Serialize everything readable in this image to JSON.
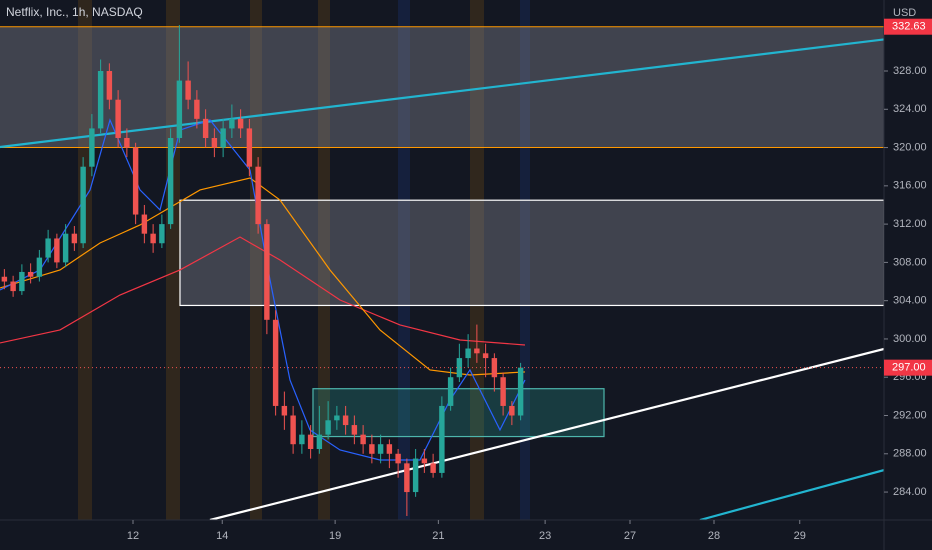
{
  "chart_data": {
    "type": "candlestick",
    "title": "Netflix, Inc., 1h, NASDAQ",
    "currency": "USD",
    "xlim": [
      -0.5,
      100.53
    ],
    "ylim": [
      281.08,
      335.42
    ],
    "xticks": [
      {
        "value": 14.7,
        "label": "12"
      },
      {
        "value": 24.9,
        "label": "14"
      },
      {
        "value": 37.8,
        "label": "19"
      },
      {
        "value": 49.6,
        "label": "21"
      },
      {
        "value": 61.8,
        "label": "23"
      },
      {
        "value": 71.5,
        "label": "27"
      },
      {
        "value": 81.1,
        "label": "28"
      },
      {
        "value": 90.9,
        "label": "29"
      }
    ],
    "yticks": [
      {
        "value": 284,
        "label": "284.00"
      },
      {
        "value": 288,
        "label": "288.00"
      },
      {
        "value": 292,
        "label": "292.00"
      },
      {
        "value": 296,
        "label": "296.00"
      },
      {
        "value": 300,
        "label": "300.00"
      },
      {
        "value": 304,
        "label": "304.00"
      },
      {
        "value": 308,
        "label": "308.00"
      },
      {
        "value": 312,
        "label": "312.00"
      },
      {
        "value": 316,
        "label": "316.00"
      },
      {
        "value": 320,
        "label": "320.00"
      },
      {
        "value": 324,
        "label": "324.00"
      },
      {
        "value": 328,
        "label": "328.00"
      }
    ],
    "up_color": "#26a69a",
    "down_color": "#ef5350",
    "candles": {
      "open": [
        306.5,
        306,
        305,
        307,
        306.5,
        308.5,
        310.5,
        308,
        311,
        310,
        318,
        322,
        328,
        325,
        321,
        320,
        313,
        311,
        310,
        312,
        321,
        327,
        325,
        323,
        321,
        320,
        322,
        323,
        322,
        318,
        312,
        302,
        293,
        292,
        289,
        290,
        288.5,
        290,
        291.5,
        292,
        291,
        290,
        289,
        288,
        289,
        288,
        287,
        284,
        287.5,
        287,
        286,
        293,
        296,
        298,
        299,
        298.5,
        298,
        296,
        293,
        292
      ],
      "high": [
        307.3,
        306.6,
        307.8,
        307.9,
        309.3,
        311.4,
        311,
        312,
        311.8,
        319,
        323.5,
        329.2,
        328.8,
        326,
        322,
        320.5,
        314,
        312,
        313,
        322,
        332.8,
        329,
        326,
        324,
        322,
        323,
        324.5,
        324,
        323,
        319,
        312.5,
        303,
        294.5,
        293,
        291.5,
        291,
        293,
        293.5,
        293,
        293,
        292,
        291,
        290,
        290,
        289.5,
        288.5,
        287.5,
        288.5,
        288.5,
        288,
        294,
        297,
        299.5,
        300.5,
        301.5,
        299.5,
        298.5,
        296.5,
        293.5,
        297.5
      ],
      "low": [
        305.2,
        304.4,
        304.6,
        305.8,
        306,
        308,
        307.4,
        307.5,
        309.2,
        309.5,
        317,
        321.5,
        324,
        320,
        319,
        312,
        310,
        309,
        309.5,
        311.5,
        320.5,
        324,
        322,
        320,
        319,
        319,
        321,
        321,
        317,
        311,
        300.5,
        292,
        290.5,
        288,
        288,
        287.5,
        288,
        289.5,
        290.5,
        290,
        289,
        288,
        287,
        287,
        286.5,
        285.5,
        281.5,
        283.5,
        286,
        285.5,
        285.5,
        292.5,
        295.5,
        297,
        297.5,
        296,
        294.5,
        292,
        291,
        291.5
      ],
      "close": [
        306,
        305,
        307,
        306.5,
        308.5,
        310.5,
        308,
        311,
        310,
        318,
        322,
        328,
        325,
        321,
        320,
        313,
        311,
        310,
        312,
        321,
        327,
        325,
        323,
        321,
        320,
        322,
        323,
        322,
        318,
        312,
        302,
        293,
        292,
        289,
        290,
        288.5,
        290,
        291.5,
        292,
        291,
        290,
        289,
        288,
        289,
        288,
        287,
        284,
        287.5,
        287,
        286,
        293,
        296,
        298,
        299,
        298.5,
        298,
        296,
        293,
        292,
        297
      ]
    },
    "lines": [
      {
        "color": "#f23645",
        "x": [
          -0.5,
          6.36,
          13.21,
          20.07,
          26.93,
          31.5,
          38.36,
          45.21,
          52.07,
          59.5
        ],
        "values": [
          299.58,
          300.94,
          304.59,
          307.21,
          310.65,
          308.25,
          304.07,
          301.46,
          299.89,
          299.37
        ]
      },
      {
        "color": "#ff9800",
        "x": [
          -0.5,
          6.36,
          10.93,
          15.5,
          22.36,
          28.07,
          31.5,
          37.21,
          42.93,
          48.64,
          53.21,
          59.5
        ],
        "values": [
          305.33,
          307.21,
          310.03,
          311.91,
          315.57,
          316.82,
          314.52,
          307.21,
          300.94,
          296.76,
          296.23,
          296.55
        ]
      },
      {
        "color": "#2962ff",
        "x": [
          -0.5,
          4.07,
          9.79,
          12.07,
          15.5,
          17.79,
          20.07,
          23.5,
          28.07,
          30.36,
          32.64,
          34.93,
          38.36,
          42.93,
          47.5,
          50.93,
          53.21,
          56.64,
          59.5
        ],
        "values": [
          305.12,
          307.21,
          315.57,
          322.88,
          315.57,
          313.48,
          321.83,
          322.88,
          317.66,
          306.16,
          295.71,
          290.49,
          288.4,
          287.35,
          287.35,
          293.62,
          296.76,
          290.49,
          295.71
        ]
      }
    ],
    "zones": [
      {
        "x": [
          -0.5,
          100.53
        ],
        "y": [
          320,
          332.63
        ],
        "fill": "rgba(120,123,134,0.45)",
        "stroke": "none"
      },
      {
        "x": [
          20.07,
          100.53
        ],
        "y": [
          303.5,
          314.5
        ],
        "fill": "rgba(120,123,134,0.45)",
        "stroke": "#ffffff"
      },
      {
        "x": [
          35.27,
          68.53
        ],
        "y": [
          289.8,
          294.8
        ],
        "fill": "rgba(38,166,154,0.25)",
        "stroke": "#4db6ac"
      }
    ],
    "trendlines": [
      {
        "x": [
          -0.5,
          100.53
        ],
        "y": [
          320.06,
          331.3
        ],
        "color": "#22b5d0"
      },
      {
        "x": [
          23.5,
          100.53
        ],
        "y": [
          281.08,
          298.95
        ],
        "color": "#ffffff"
      },
      {
        "x": [
          79.5,
          100.53
        ],
        "y": [
          281.08,
          286.3
        ],
        "color": "#22b5d0"
      }
    ],
    "levels": [
      {
        "value": 332.63,
        "color": "#ff9800"
      },
      {
        "value": 320,
        "color": "#ff9800"
      }
    ],
    "price_labels": [
      {
        "value": 332.63,
        "label": "332.63"
      },
      {
        "value": 297,
        "label": "297.00"
      }
    ]
  }
}
